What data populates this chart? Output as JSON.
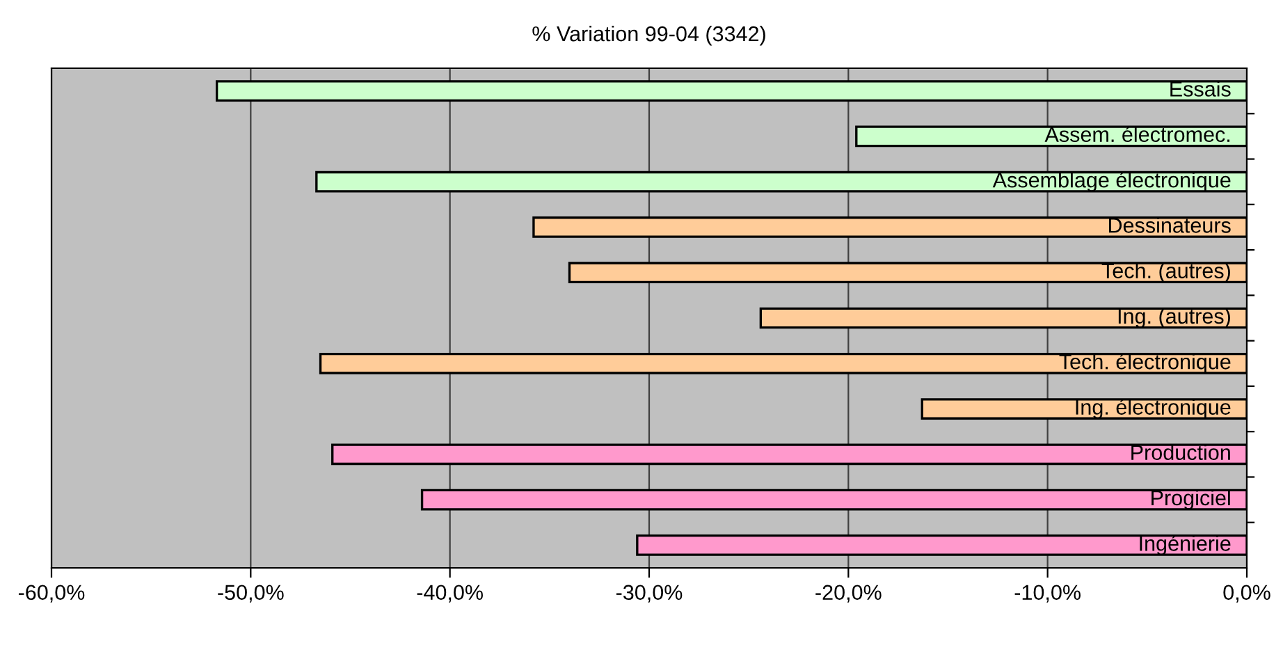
{
  "chart_data": {
    "type": "bar",
    "orientation": "horizontal",
    "title": "% Variation 99-04 (3342)",
    "categories": [
      "Essais",
      "Assem. électromec.",
      "Assemblage électronique",
      "Dessinateurs",
      "Tech. (autres)",
      "Ing. (autres)",
      "Tech. électronique",
      "Ing. électronique",
      "Production",
      "Progiciel",
      "Ingénierie"
    ],
    "values": [
      -51.7,
      -19.6,
      -46.7,
      -35.8,
      -34.0,
      -24.4,
      -46.5,
      -16.3,
      -45.9,
      -41.4,
      -30.6
    ],
    "colors": [
      "#ccffcc",
      "#ccffcc",
      "#ccffcc",
      "#ffcc99",
      "#ffcc99",
      "#ffcc99",
      "#ffcc99",
      "#ffcc99",
      "#ff99cc",
      "#ff99cc",
      "#ff99cc"
    ],
    "xlim": [
      -60,
      0
    ],
    "xticks": [
      {
        "value": -60,
        "label": "-60,0%"
      },
      {
        "value": -50,
        "label": "-50,0%"
      },
      {
        "value": -40,
        "label": "-40,0%"
      },
      {
        "value": -30,
        "label": "-30,0%"
      },
      {
        "value": -20,
        "label": "-20,0%"
      },
      {
        "value": -10,
        "label": "-10,0%"
      },
      {
        "value": 0,
        "label": "0,0%"
      }
    ],
    "grid": "x"
  }
}
